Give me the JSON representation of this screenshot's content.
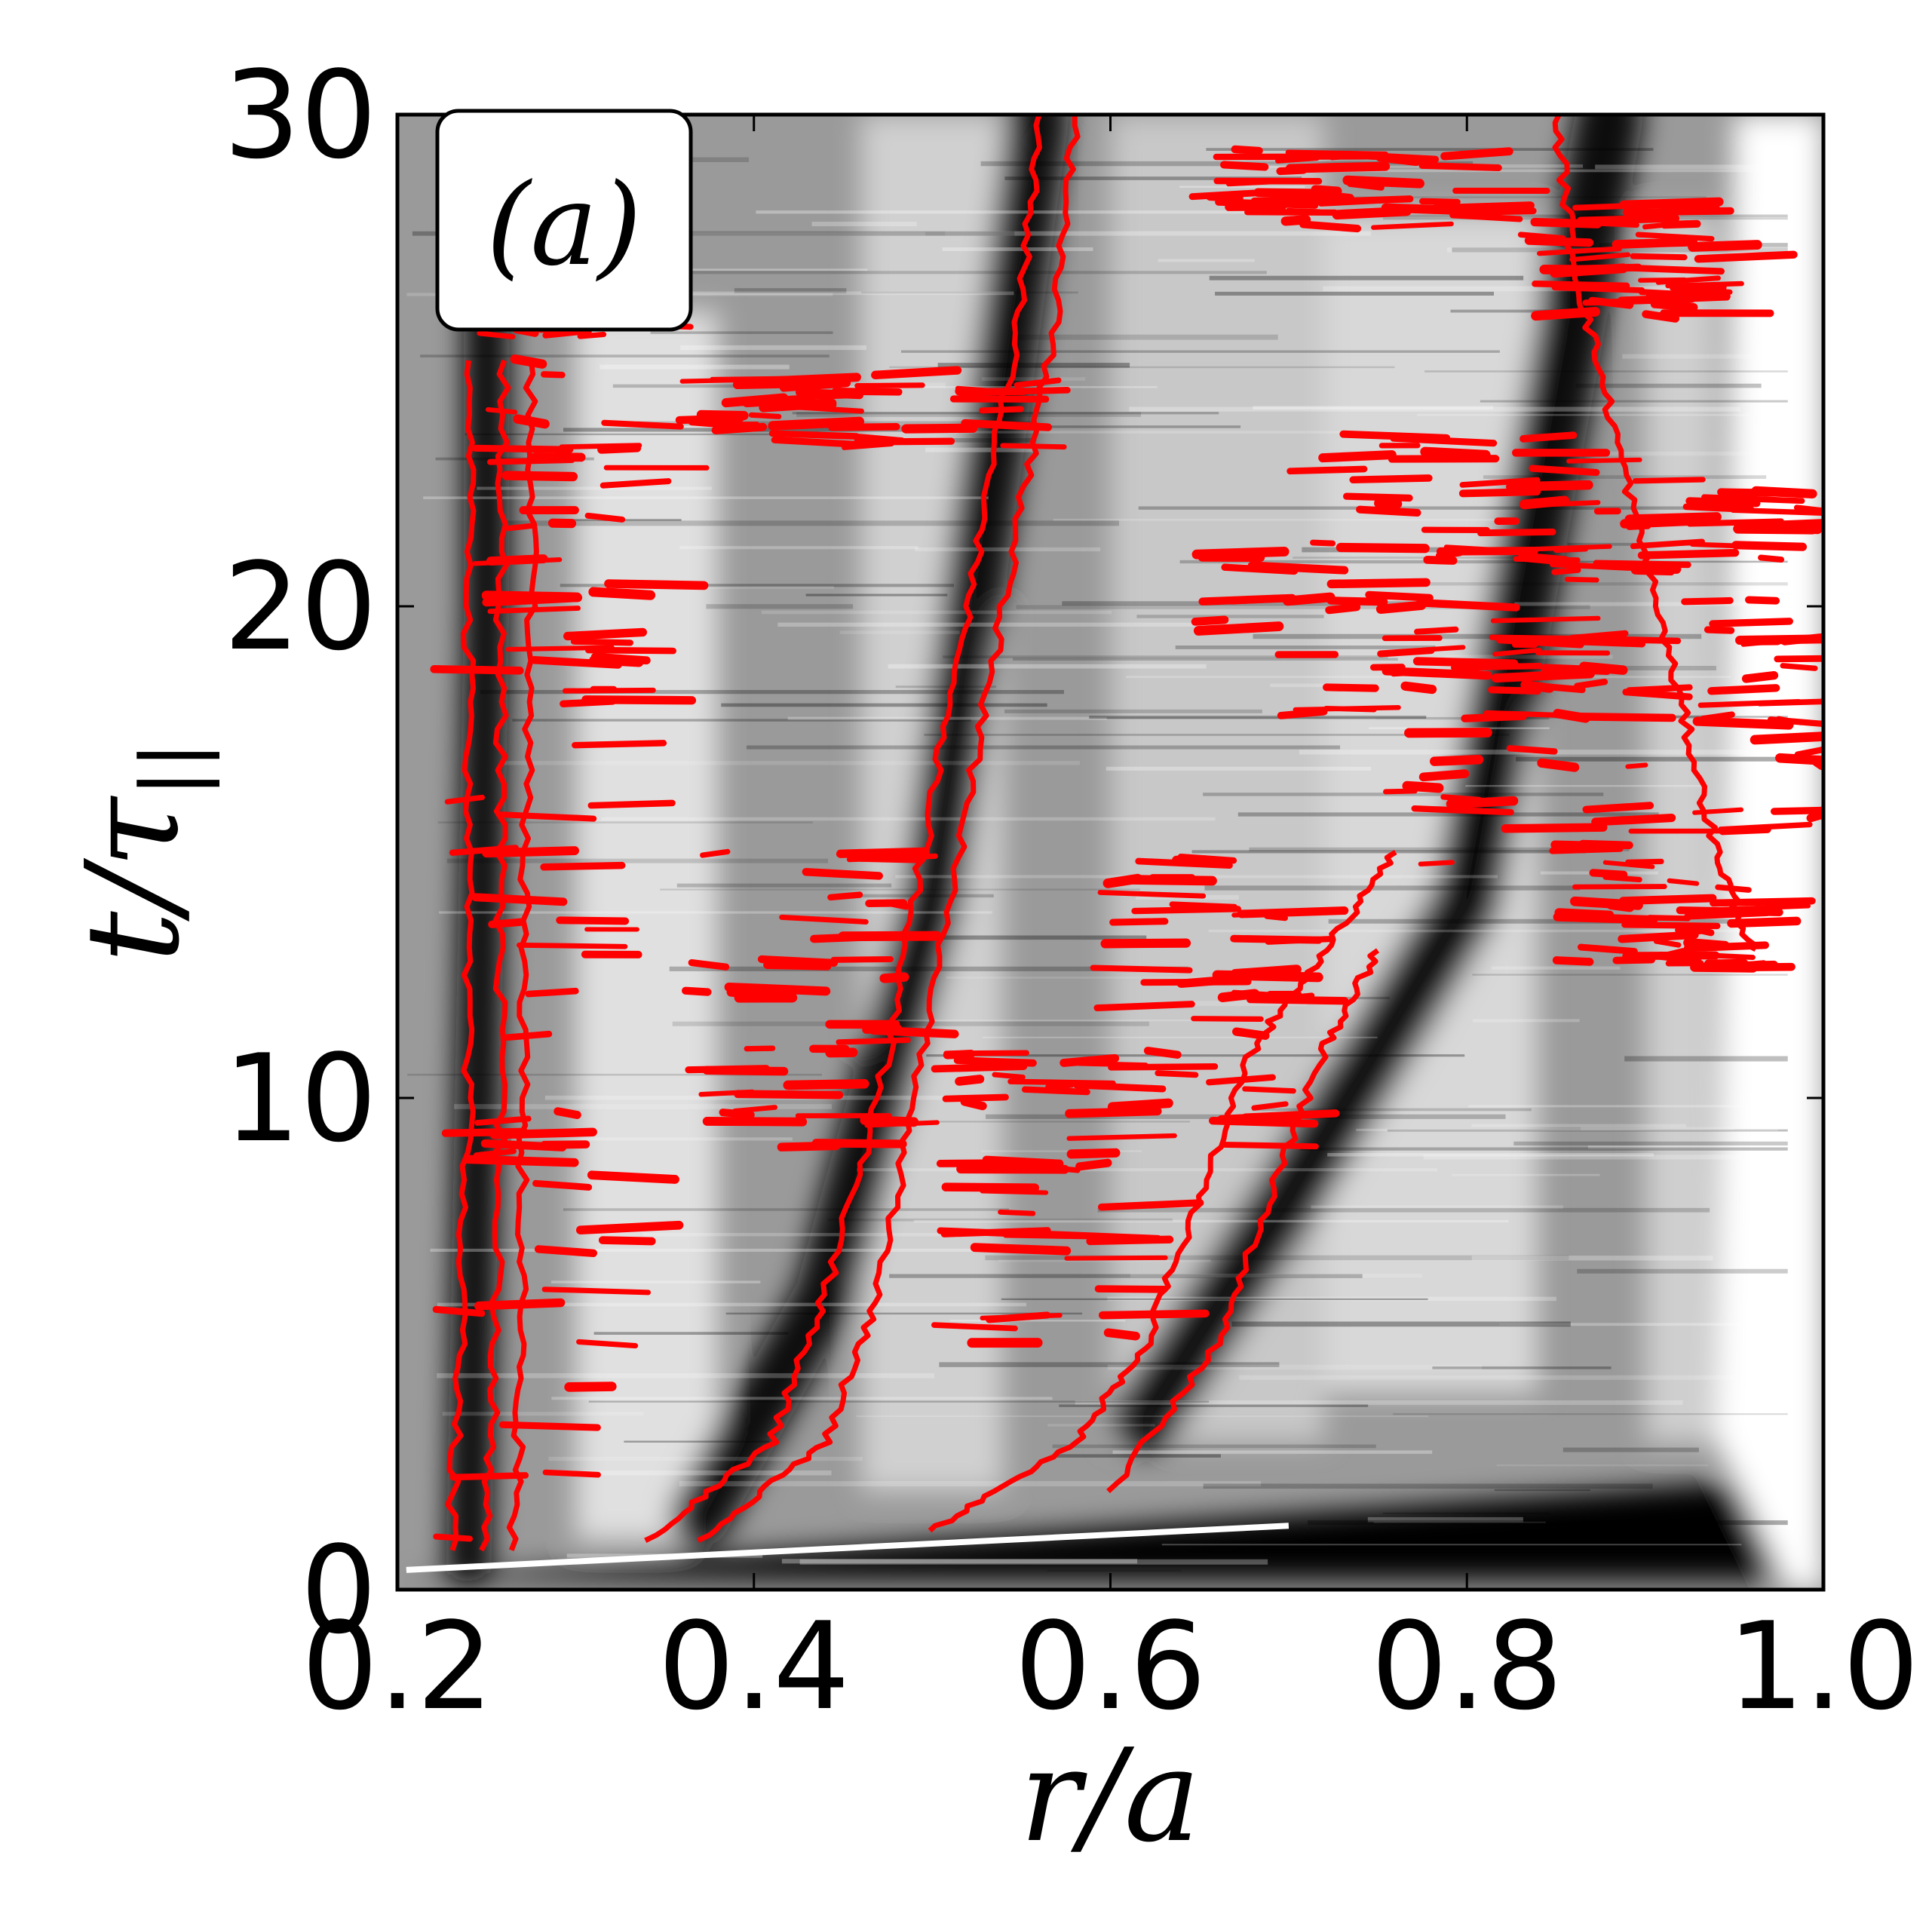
{
  "chart_data": {
    "type": "heatmap",
    "panel_label": "(a)",
    "xlabel": "r/a",
    "ylabel": "t/τ",
    "ylabel_subscript": "||",
    "xlim": [
      0.2,
      1.0
    ],
    "ylim": [
      0,
      30
    ],
    "x_ticks": [
      0.2,
      0.4,
      0.6,
      0.8,
      1.0
    ],
    "x_tick_labels": [
      "0.2",
      "0.4",
      "0.6",
      "0.8",
      "1.0"
    ],
    "y_ticks": [
      0,
      10,
      20,
      30
    ],
    "y_tick_labels": [
      "0",
      "10",
      "20",
      "30"
    ],
    "colormap": "grayscale",
    "contour_color": "#ff0000",
    "grid": false,
    "dark_bands": [
      {
        "x_start": 0.25,
        "x_end": 0.25,
        "t_start": 0.5,
        "t_end": 30
      },
      {
        "x_start": 0.39,
        "x_end": 0.57,
        "t_start": 2,
        "t_end": 30
      },
      {
        "x_start": 0.62,
        "x_end": 0.88,
        "t_start": 3,
        "t_end": 30
      }
    ],
    "contour_lines": [
      {
        "name": "",
        "points": [
          [
            0.23,
            0.8
          ],
          [
            0.235,
            5
          ],
          [
            0.24,
            10
          ],
          [
            0.24,
            15
          ],
          [
            0.24,
            20
          ],
          [
            0.24,
            25
          ]
        ]
      },
      {
        "name": "",
        "points": [
          [
            0.25,
            0.8
          ],
          [
            0.255,
            5
          ],
          [
            0.258,
            10
          ],
          [
            0.258,
            15
          ],
          [
            0.258,
            20
          ],
          [
            0.26,
            25
          ]
        ]
      },
      {
        "name": "",
        "points": [
          [
            0.265,
            0.8
          ],
          [
            0.27,
            5
          ],
          [
            0.27,
            10
          ],
          [
            0.272,
            15
          ],
          [
            0.275,
            20
          ],
          [
            0.275,
            25
          ]
        ]
      },
      {
        "name": "",
        "points": [
          [
            0.34,
            1.0
          ],
          [
            0.41,
            3
          ],
          [
            0.44,
            6
          ],
          [
            0.47,
            10
          ],
          [
            0.49,
            14
          ],
          [
            0.51,
            18
          ],
          [
            0.53,
            22
          ],
          [
            0.55,
            26
          ],
          [
            0.56,
            30
          ]
        ]
      },
      {
        "name": "",
        "points": [
          [
            0.37,
            1.0
          ],
          [
            0.44,
            3
          ],
          [
            0.47,
            6
          ],
          [
            0.49,
            10
          ],
          [
            0.51,
            14
          ],
          [
            0.53,
            18
          ],
          [
            0.55,
            22
          ],
          [
            0.57,
            26
          ],
          [
            0.58,
            30
          ]
        ]
      },
      {
        "name": "",
        "points": [
          [
            0.5,
            1.2
          ],
          [
            0.58,
            3
          ],
          [
            0.62,
            5
          ],
          [
            0.65,
            8
          ],
          [
            0.68,
            11
          ],
          [
            0.72,
            13
          ],
          [
            0.76,
            15
          ]
        ]
      },
      {
        "name": "",
        "points": [
          [
            0.6,
            2.0
          ],
          [
            0.66,
            5
          ],
          [
            0.69,
            8
          ],
          [
            0.72,
            11
          ],
          [
            0.75,
            13
          ]
        ]
      },
      {
        "name": "",
        "points": [
          [
            0.85,
            30
          ],
          [
            0.86,
            27
          ],
          [
            0.88,
            24
          ],
          [
            0.9,
            21
          ],
          [
            0.92,
            18
          ],
          [
            0.94,
            15
          ],
          [
            0.96,
            13
          ]
        ]
      }
    ],
    "contour_blobs": [
      {
        "x": 0.27,
        "t": 10,
        "rx": 0.05,
        "rt": 9
      },
      {
        "x": 0.28,
        "t": 22,
        "rx": 0.04,
        "rt": 4
      },
      {
        "x": 0.45,
        "t": 24,
        "rx": 0.1,
        "rt": 0.8
      },
      {
        "x": 0.42,
        "t": 12,
        "rx": 0.06,
        "rt": 3
      },
      {
        "x": 0.55,
        "t": 8,
        "rx": 0.05,
        "rt": 3
      },
      {
        "x": 0.64,
        "t": 12,
        "rx": 0.05,
        "rt": 3
      },
      {
        "x": 0.75,
        "t": 19.5,
        "rx": 0.12,
        "rt": 1.8
      },
      {
        "x": 0.8,
        "t": 22,
        "rx": 0.1,
        "rt": 1.6
      },
      {
        "x": 0.82,
        "t": 17,
        "rx": 0.08,
        "rt": 2.5
      },
      {
        "x": 0.72,
        "t": 28.5,
        "rx": 0.08,
        "rt": 0.8
      },
      {
        "x": 0.88,
        "t": 27,
        "rx": 0.05,
        "rt": 1.2
      },
      {
        "x": 0.96,
        "t": 19,
        "rx": 0.04,
        "rt": 3.5
      },
      {
        "x": 0.9,
        "t": 14,
        "rx": 0.05,
        "rt": 1.5
      }
    ]
  }
}
